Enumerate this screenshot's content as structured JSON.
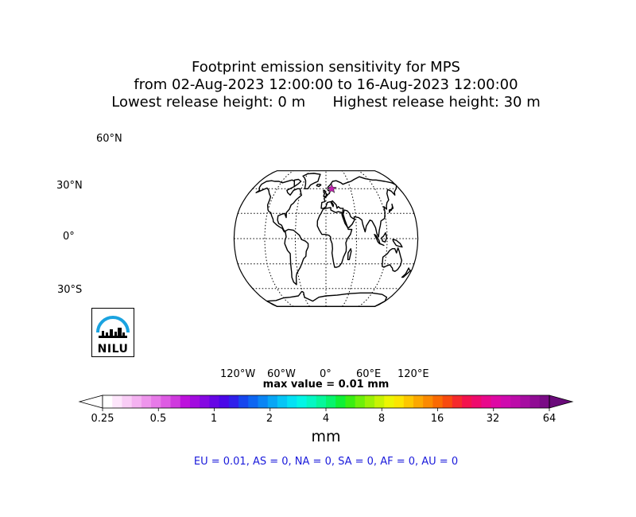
{
  "title": {
    "line1": "Footprint emission sensitivity for MPS",
    "line2": "from 02-Aug-2023 12:00:00 to 16-Aug-2023 12:00:00",
    "line3_left": "Lowest release height: 0 m",
    "line3_right": "Highest release height: 30 m"
  },
  "map": {
    "projection": "Robinson",
    "lat_labels": [
      "60°N",
      "30°N",
      "0°",
      "30°S"
    ],
    "lon_labels": [
      "120°W",
      "60°W",
      "0°",
      "60°E",
      "120°E"
    ],
    "station_marker_color": "#c21fb0",
    "logo_text": "NILU",
    "logo_icon": "nilu-logo-icon"
  },
  "max_value_text": "max value = 0.01 mm",
  "colorbar": {
    "tick_labels": [
      "0.25",
      "0.5",
      "1",
      "2",
      "4",
      "8",
      "16",
      "32",
      "64"
    ],
    "unit": "mm",
    "colors": [
      "#ffffff",
      "#fde6fb",
      "#f9cdf6",
      "#f4b2f1",
      "#ee95ec",
      "#e77ae8",
      "#dd5be3",
      "#cf39de",
      "#bd11dc",
      "#a20bdf",
      "#8508e2",
      "#6606e5",
      "#4a07e8",
      "#3020ea",
      "#1646ee",
      "#0d66f2",
      "#0a85f4",
      "#08a6f5",
      "#06c5f6",
      "#04e1f4",
      "#03f5e6",
      "#04f7c3",
      "#05f79b",
      "#06f46c",
      "#0ff035",
      "#3aee12",
      "#6ef00a",
      "#9df106",
      "#c8f304",
      "#ecf503",
      "#fbe502",
      "#fdc701",
      "#fca801",
      "#fb8a01",
      "#fa6a03",
      "#f84a0f",
      "#f52a2c",
      "#f3124d",
      "#ee0a6c",
      "#e8088b",
      "#de08a4",
      "#cf0aae",
      "#bc0ca9",
      "#a60da1",
      "#900c94",
      "#7a0b86"
    ],
    "extend_max_color": "#6a0a7a"
  },
  "regions_text": "EU = 0.01,  AS = 0,  NA = 0,  SA = 0,  AF = 0,  AU = 0"
}
